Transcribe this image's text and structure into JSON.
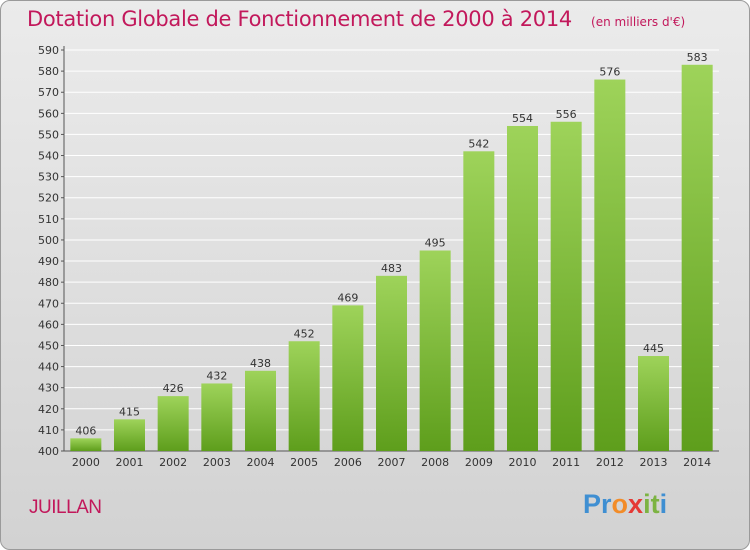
{
  "header": {
    "title": "Dotation Globale de Fonctionnement de 2000 à 2014",
    "subtitle": "(en milliers d'€)"
  },
  "footer": {
    "commune": "JUILLAN",
    "logo_text": "Proxiti",
    "logo_colors": [
      "#3f8fd2",
      "#3f8fd2",
      "#f28c28",
      "#e53935",
      "#7cb342",
      "#7cb342",
      "#3f8fd2"
    ]
  },
  "colors": {
    "accent": "#c2185b",
    "bar_top": "#9ed35a",
    "bar_bottom": "#5e9e1c"
  },
  "chart_data": {
    "type": "bar",
    "categories": [
      "2000",
      "2001",
      "2002",
      "2003",
      "2004",
      "2005",
      "2006",
      "2007",
      "2008",
      "2009",
      "2010",
      "2011",
      "2012",
      "2013",
      "2014"
    ],
    "values": [
      406,
      415,
      426,
      432,
      438,
      452,
      469,
      483,
      495,
      542,
      554,
      556,
      576,
      445,
      583
    ],
    "title": "Dotation Globale de Fonctionnement de 2000 à 2014",
    "subtitle": "(en milliers d'€)",
    "xlabel": "",
    "ylabel": "",
    "ylim": [
      400,
      590
    ],
    "yticks": [
      400,
      410,
      420,
      430,
      440,
      450,
      460,
      470,
      480,
      490,
      500,
      510,
      520,
      530,
      540,
      550,
      560,
      570,
      580,
      590
    ],
    "grid": true,
    "legend": "none"
  }
}
